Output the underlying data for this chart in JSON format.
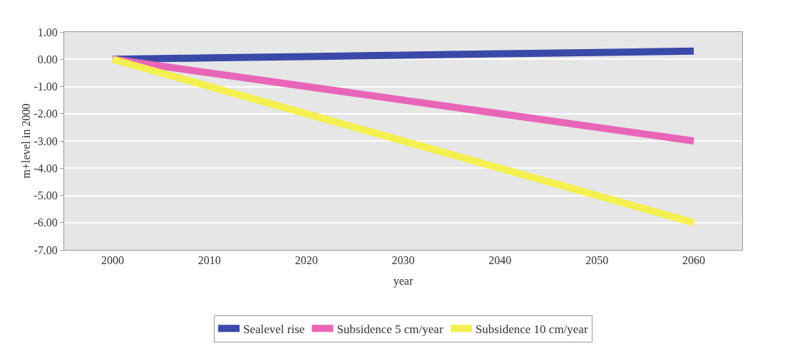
{
  "chart_data": {
    "type": "line",
    "xlabel": "year",
    "ylabel": "m+level in 2000",
    "categories": [
      "2000",
      "2010",
      "2020",
      "2030",
      "2040",
      "2050",
      "2060"
    ],
    "series": [
      {
        "name": "Sealevel rise",
        "color": "#3a4aa8",
        "values": [
          0,
          0.05,
          0.1,
          0.15,
          0.2,
          0.25,
          0.3
        ]
      },
      {
        "name": "Subsidence 5 cm/year",
        "color": "#e866b8",
        "values": [
          0,
          -0.5,
          -1,
          -1.5,
          -2,
          -2.5,
          -3
        ]
      },
      {
        "name": "Subsidence 10 cm/year",
        "color": "#f4f050",
        "values": [
          0,
          -1,
          -2,
          -3,
          -4,
          -5,
          -6
        ]
      }
    ],
    "ylim": [
      -7,
      1
    ],
    "yticks": [
      {
        "value": 1,
        "label": "1.00"
      },
      {
        "value": 0,
        "label": "0.00"
      },
      {
        "value": -1,
        "label": "-1.00"
      },
      {
        "value": -2,
        "label": "-2.00"
      },
      {
        "value": -3,
        "label": "-3.00"
      },
      {
        "value": -4,
        "label": "-4.00"
      },
      {
        "value": -5,
        "label": "-5.00"
      },
      {
        "value": -6,
        "label": "-6.00"
      },
      {
        "value": -7,
        "label": "-7.00"
      }
    ],
    "grid": "y",
    "legend": "bottom",
    "marker": "none",
    "line_style": "solid"
  }
}
